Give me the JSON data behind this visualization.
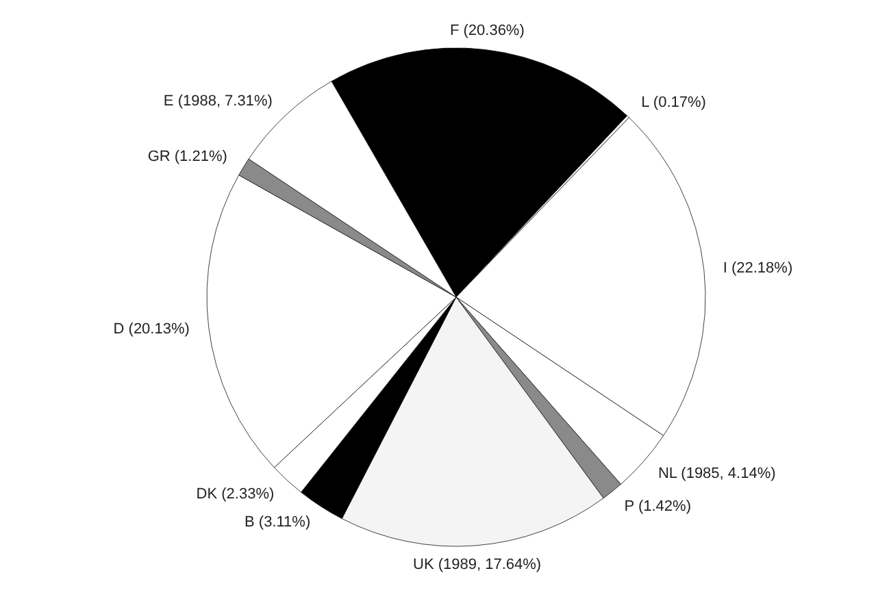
{
  "chart_data": {
    "type": "pie",
    "categories": [
      "F (20.36%)",
      "L (0.17%)",
      "I (22.18%)",
      "NL (1985, 4.14%)",
      "P (1.42%)",
      "UK (1989, 17.64%)",
      "B (3.11%)",
      "DK (2.33%)",
      "D (20.13%)",
      "GR (1.21%)",
      "E (1988, 7.31%)"
    ],
    "values": [
      20.36,
      0.17,
      22.18,
      4.14,
      1.42,
      17.64,
      3.11,
      2.33,
      20.13,
      1.21,
      7.31
    ],
    "colors": [
      "#000000",
      "#ffffff",
      "#ffffff",
      "#ffffff",
      "#8a8a8a",
      "#f4f4f4",
      "#000000",
      "#ffffff",
      "#ffffff",
      "#8a8a8a",
      "#ffffff"
    ]
  }
}
